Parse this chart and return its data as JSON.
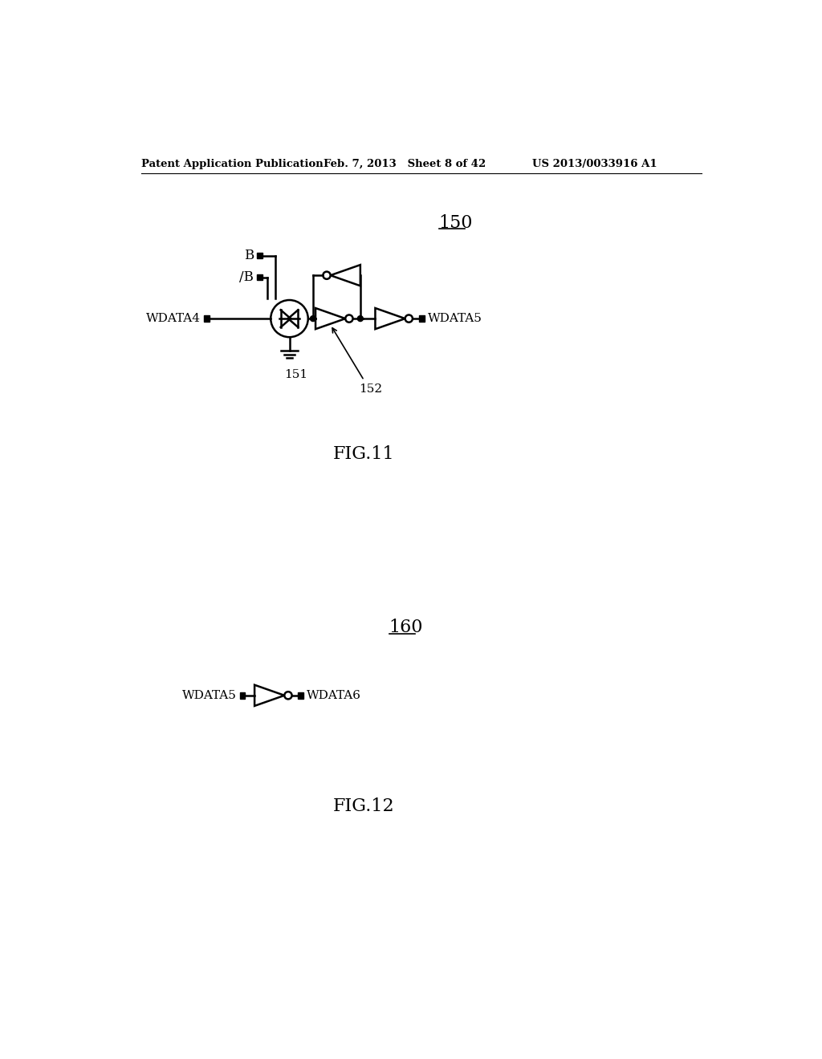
{
  "bg_color": "#ffffff",
  "header_left": "Patent Application Publication",
  "header_mid": "Feb. 7, 2013   Sheet 8 of 42",
  "header_right": "US 2013/0033916 A1",
  "fig11_label": "150",
  "fig11_caption": "FIG.11",
  "fig12_label": "160",
  "fig12_caption": "FIG.12",
  "label_151": "151",
  "label_152": "152",
  "lw": 1.8
}
